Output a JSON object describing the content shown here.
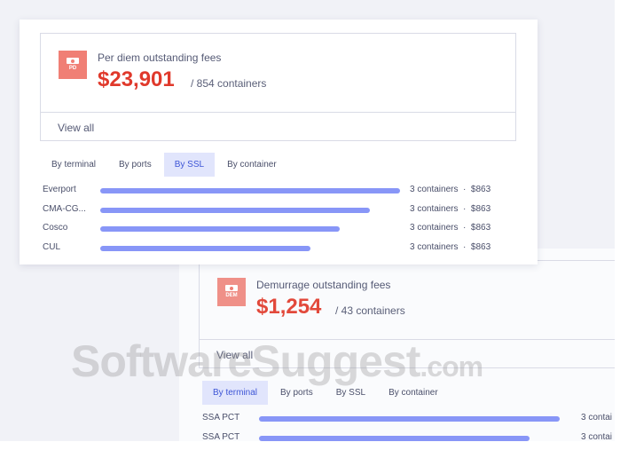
{
  "per_diem": {
    "badge": "PD",
    "title": "Per diem outstanding fees",
    "amount": "$23,901",
    "containers": "/ 854 containers",
    "view_all": "View all",
    "tabs": [
      "By terminal",
      "By ports",
      "By SSL",
      "By container"
    ],
    "active_tab": 2,
    "rows": [
      {
        "label": "Everport",
        "value": 1.0,
        "text": "3 containers  ·  $863"
      },
      {
        "label": "CMA-CG...",
        "value": 0.9,
        "text": "3 containers  ·  $863"
      },
      {
        "label": "Cosco",
        "value": 0.8,
        "text": "3 containers  ·  $863"
      },
      {
        "label": "CUL",
        "value": 0.7,
        "text": "3 containers  ·  $863"
      }
    ]
  },
  "demurrage": {
    "badge": "DEM",
    "title": "Demurrage outstanding fees",
    "amount": "$1,254",
    "containers": "/ 43 containers",
    "view_all": "View all",
    "tabs": [
      "By terminal",
      "By ports",
      "By SSL",
      "By container"
    ],
    "active_tab": 0,
    "rows": [
      {
        "label": "SSA PCT",
        "value": 1.0,
        "text": "3 contai"
      },
      {
        "label": "SSA PCT",
        "value": 0.9,
        "text": "3 contai"
      }
    ]
  },
  "watermark": "SoftwareSuggest.com",
  "colors": {
    "accent": "#3d55d6",
    "bar": "#8896f7",
    "amount": "#e0392b",
    "badge": "#f07f75"
  }
}
